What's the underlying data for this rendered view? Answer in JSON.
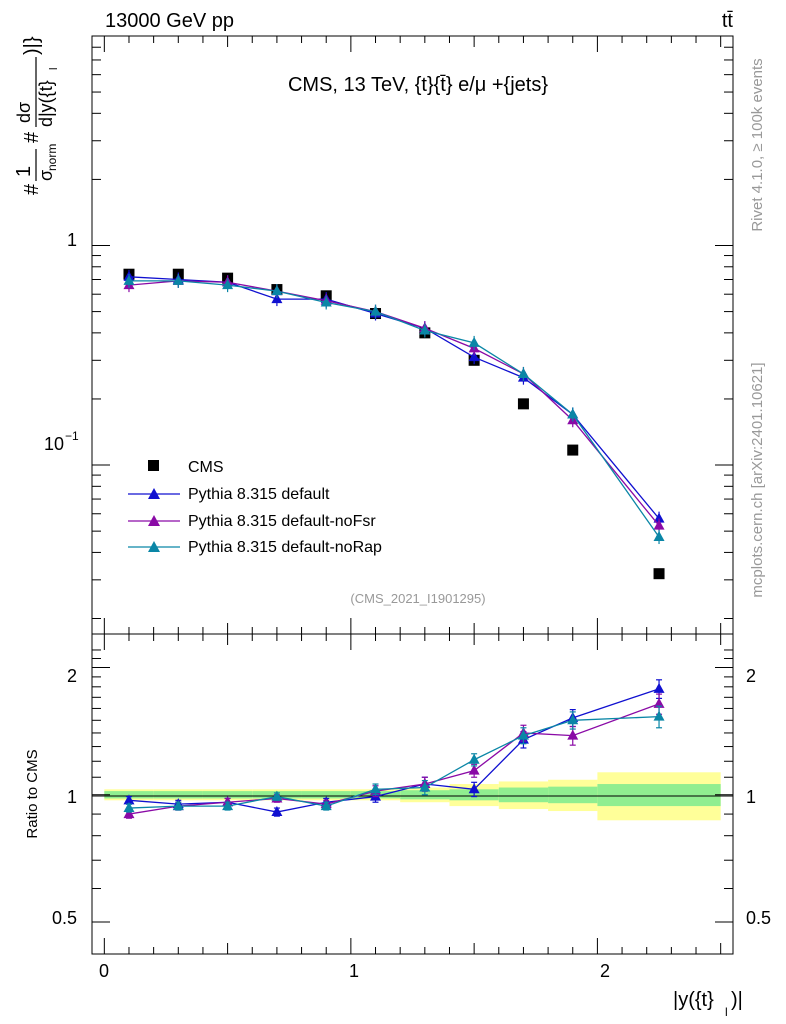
{
  "header": {
    "left": "13000 GeV pp",
    "right": "tt̄"
  },
  "side_labels": {
    "rivet": "Rivet 4.1.0, ≥ 100k events",
    "mcplots": "mcplots.cern.ch [arXiv:2401.10621]"
  },
  "chart_data": [
    {
      "type": "scatter",
      "title": "CMS, 13 TeV, {t}{t̄} e/μ +{jets}",
      "analysis_id": "(CMS_2021_I1901295)",
      "ylabel": "#1/σnorm #dσ/d|y({t}l)|}",
      "ylabel_parts": {
        "hash1": "#",
        "one": "1",
        "sigma": "σ",
        "norm": "norm",
        "hash2": "#",
        "dsigma": "dσ",
        "dy": "d|y({t}",
        "l": "l",
        "close": ")|}"
      },
      "yscale": "log",
      "ylim": [
        0.017,
        9
      ],
      "xlim": [
        -0.05,
        2.55
      ],
      "ytick_labels": {
        "one": "1",
        "tenth_base": "10",
        "tenth_exp": "−1"
      },
      "legend_position": "bottom-left",
      "x": [
        0.1,
        0.3,
        0.5,
        0.7,
        0.9,
        1.1,
        1.3,
        1.5,
        1.7,
        1.9,
        2.25
      ],
      "series": [
        {
          "name": "CMS",
          "color": "#000000",
          "marker": "square",
          "values": [
            0.74,
            0.74,
            0.71,
            0.63,
            0.59,
            0.49,
            0.4,
            0.3,
            0.19,
            0.117,
            0.032
          ]
        },
        {
          "name": "Pythia 8.315 default",
          "color": "#1010d0",
          "marker": "triangle",
          "values": [
            0.72,
            0.7,
            0.68,
            0.57,
            0.57,
            0.49,
            0.42,
            0.31,
            0.25,
            0.17,
            0.057
          ]
        },
        {
          "name": "Pythia 8.315 default-noFsr",
          "color": "#8a0aa6",
          "marker": "triangle",
          "values": [
            0.66,
            0.69,
            0.68,
            0.62,
            0.56,
            0.5,
            0.42,
            0.34,
            0.26,
            0.16,
            0.053
          ]
        },
        {
          "name": "Pythia 8.315 default-noRap",
          "color": "#0a86a6",
          "marker": "triangle",
          "values": [
            0.69,
            0.69,
            0.66,
            0.62,
            0.55,
            0.5,
            0.41,
            0.36,
            0.26,
            0.17,
            0.047
          ]
        }
      ]
    },
    {
      "type": "line",
      "ylabel": "Ratio to CMS",
      "xlabel": "|y({t}l)|",
      "xlabel_parts": {
        "main": "|y({t}",
        "sub": "l",
        "close": ")|"
      },
      "yscale": "log",
      "ylim": [
        0.42,
        2.4
      ],
      "xlim": [
        -0.05,
        2.55
      ],
      "yticks": [
        "0.5",
        "1",
        "2"
      ],
      "xticks": [
        "0",
        "1",
        "2"
      ],
      "x": [
        0.1,
        0.3,
        0.5,
        0.7,
        0.9,
        1.1,
        1.3,
        1.5,
        1.7,
        1.9,
        2.25
      ],
      "bin_edges": [
        0.0,
        0.2,
        0.4,
        0.6,
        0.8,
        1.0,
        1.2,
        1.4,
        1.6,
        1.8,
        2.0,
        2.5
      ],
      "band_inner": [
        0.02,
        0.02,
        0.02,
        0.02,
        0.02,
        0.02,
        0.025,
        0.03,
        0.04,
        0.045,
        0.06
      ],
      "band_outer": [
        0.03,
        0.03,
        0.03,
        0.03,
        0.03,
        0.03,
        0.04,
        0.06,
        0.075,
        0.085,
        0.13
      ],
      "band_colors": {
        "inner": "#90ee90",
        "outer": "#ffff99"
      },
      "series": [
        {
          "name": "Pythia 8.315 default",
          "color": "#1010d0",
          "values": [
            0.97,
            0.95,
            0.96,
            0.91,
            0.96,
            0.99,
            1.06,
            1.03,
            1.35,
            1.52,
            1.78
          ],
          "errors": [
            0.02,
            0.02,
            0.02,
            0.02,
            0.02,
            0.03,
            0.04,
            0.04,
            0.06,
            0.07,
            0.09
          ]
        },
        {
          "name": "Pythia 8.315 default-noFsr",
          "color": "#8a0aa6",
          "values": [
            0.9,
            0.94,
            0.96,
            0.98,
            0.95,
            1.02,
            1.06,
            1.14,
            1.4,
            1.38,
            1.64
          ],
          "errors": [
            0.02,
            0.02,
            0.02,
            0.02,
            0.02,
            0.03,
            0.04,
            0.04,
            0.06,
            0.07,
            0.09
          ]
        },
        {
          "name": "Pythia 8.315 default-noRap",
          "color": "#0a86a6",
          "values": [
            0.93,
            0.94,
            0.94,
            0.99,
            0.94,
            1.03,
            1.04,
            1.21,
            1.38,
            1.5,
            1.53
          ],
          "errors": [
            0.02,
            0.02,
            0.02,
            0.02,
            0.02,
            0.03,
            0.04,
            0.04,
            0.06,
            0.07,
            0.09
          ]
        }
      ]
    }
  ]
}
